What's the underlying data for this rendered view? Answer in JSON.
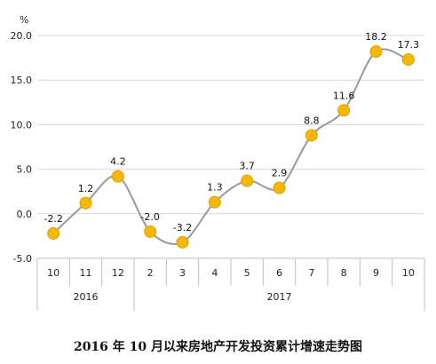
{
  "caption": "2016 年 10 月以来房地产开发投资累计增速走势图",
  "chart_data": {
    "type": "line",
    "ylabel": "%",
    "ylim": [
      -5,
      20
    ],
    "yticks": [
      "20.0",
      "15.0",
      "10.0",
      "5.0",
      "0.0",
      "-5.0"
    ],
    "categories": [
      "10",
      "11",
      "12",
      "2",
      "3",
      "4",
      "5",
      "6",
      "7",
      "8",
      "9",
      "10"
    ],
    "year_groups": [
      {
        "label": "2016",
        "count": 3
      },
      {
        "label": "2017",
        "count": 9
      }
    ],
    "values": [
      -2.2,
      1.2,
      4.2,
      -2.0,
      -3.2,
      1.3,
      3.7,
      2.9,
      8.8,
      11.6,
      18.2,
      17.3
    ],
    "value_labels": [
      "-2.2",
      "1.2",
      "4.2",
      "-2.0",
      "-3.2",
      "1.3",
      "3.7",
      "2.9",
      "8.8",
      "11.6",
      "18.2",
      "17.3"
    ],
    "grid": true,
    "line_color": "#999999",
    "marker_color": "#F5B800",
    "marker_edge": "#E0A000"
  }
}
